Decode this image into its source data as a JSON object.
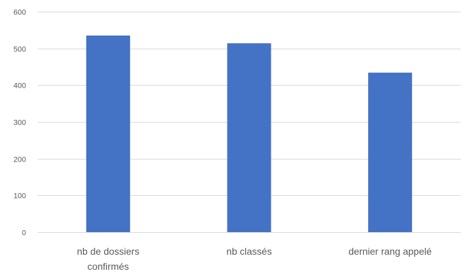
{
  "chart_data": {
    "type": "bar",
    "categories": [
      "nb de dossiers confirmés",
      "nb classés",
      "dernier rang appelé"
    ],
    "category_lines": [
      [
        "nb de dossiers",
        "confirmés"
      ],
      [
        "nb classés"
      ],
      [
        "dernier rang appelé"
      ]
    ],
    "values": [
      535,
      514,
      434
    ],
    "ylim": [
      0,
      600
    ],
    "yticks": [
      0,
      100,
      200,
      300,
      400,
      500,
      600
    ],
    "grid": true,
    "legend": "none",
    "title": "",
    "xlabel": "",
    "ylabel": ""
  },
  "colors": {
    "bar": "#4472C4",
    "gridline": "#D9D9D9",
    "tick_text": "#595959"
  }
}
